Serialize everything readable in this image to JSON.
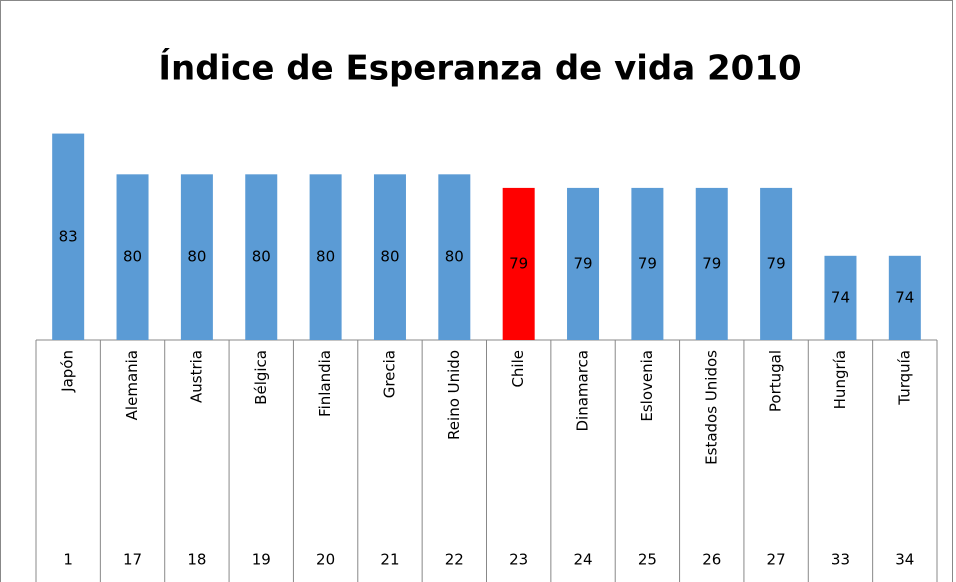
{
  "chart_data": {
    "type": "bar",
    "title": "Índice de Esperanza de vida 2010",
    "categories": [
      "Japón",
      "Alemania",
      "Austria",
      "Bélgica",
      "Finlandia",
      "Grecia",
      "Reino Unido",
      "Chile",
      "Dinamarca",
      "Eslovenia",
      "Estados Unidos",
      "Portugal",
      "Hungría",
      "Turquía"
    ],
    "ranks": [
      "1",
      "17",
      "18",
      "19",
      "20",
      "21",
      "22",
      "23",
      "24",
      "25",
      "26",
      "27",
      "33",
      "34"
    ],
    "values": [
      83,
      80,
      80,
      80,
      80,
      80,
      80,
      79,
      79,
      79,
      79,
      79,
      74,
      74
    ],
    "colors": [
      "#5b9bd5",
      "#5b9bd5",
      "#5b9bd5",
      "#5b9bd5",
      "#5b9bd5",
      "#5b9bd5",
      "#5b9bd5",
      "#ff0000",
      "#5b9bd5",
      "#5b9bd5",
      "#5b9bd5",
      "#5b9bd5",
      "#5b9bd5",
      "#5b9bd5"
    ],
    "ylim": [
      67.8,
      84
    ]
  }
}
